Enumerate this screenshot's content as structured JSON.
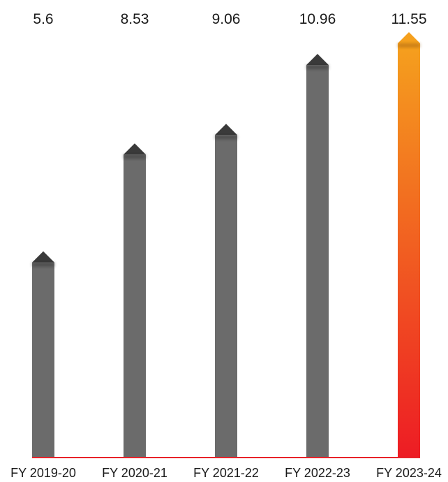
{
  "chart_data": {
    "type": "bar",
    "categories": [
      "FY 2019-20",
      "FY 2020-21",
      "FY 2021-22",
      "FY 2022-23",
      "FY 2023-24"
    ],
    "values": [
      5.6,
      8.53,
      9.06,
      10.96,
      11.55
    ],
    "value_labels": [
      "5.6",
      "8.53",
      "9.06",
      "10.96",
      "11.55"
    ],
    "highlight_index": 4,
    "ylim": [
      0,
      11.55
    ],
    "grid": false,
    "colors": {
      "bar": "#6b6b6b",
      "bar_cap": "#3a3a3a",
      "highlight_top": "#f5a01e",
      "highlight_bottom": "#ed1c24",
      "baseline": "#e8232a"
    }
  }
}
